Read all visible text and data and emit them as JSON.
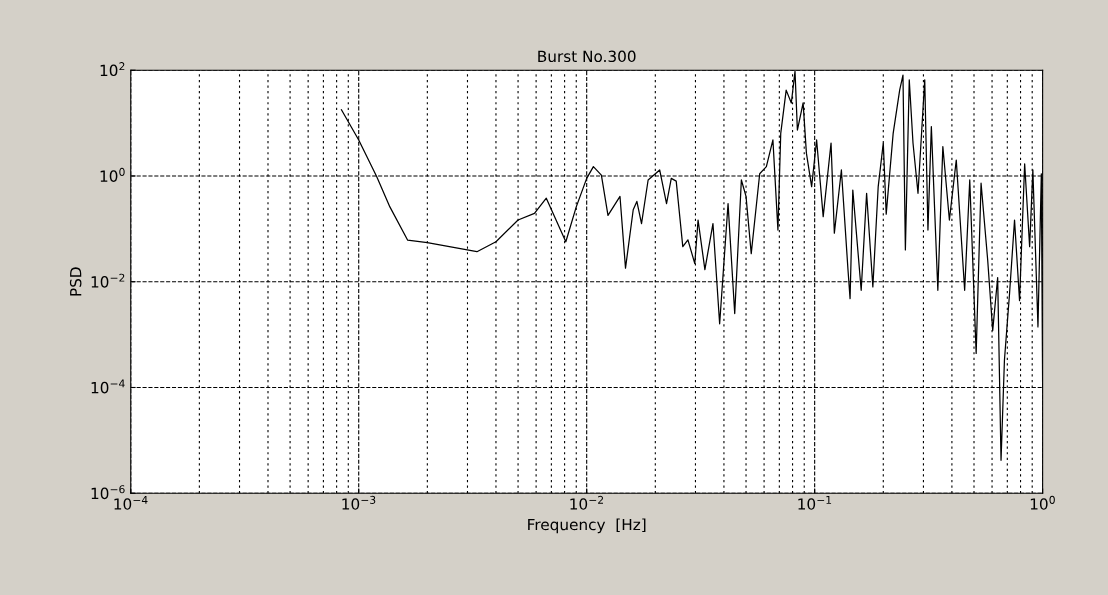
{
  "chart_data": {
    "type": "line",
    "title": "Burst No.300",
    "xlabel": "Frequency  [Hz]",
    "ylabel": "PSD",
    "log": "xy",
    "grid": true,
    "marker": "none",
    "line_style": "solid",
    "xlim": [
      0.0001,
      1
    ],
    "ylim": [
      1e-06,
      100
    ],
    "xticks": [
      {
        "value": 0.0001,
        "label": "10$^{−4}$"
      },
      {
        "value": 0.001,
        "label": "10$^{−3}$"
      },
      {
        "value": 0.01,
        "label": "10$^{−2}$"
      },
      {
        "value": 0.1,
        "label": "10$^{−1}$"
      },
      {
        "value": 1,
        "label": "10$^{0}$"
      }
    ],
    "yticks": [
      {
        "value": 1e-06,
        "label": "10$^{−6}$"
      },
      {
        "value": 0.0001,
        "label": "10$^{−4}$"
      },
      {
        "value": 0.01,
        "label": "10$^{−2}$"
      },
      {
        "value": 1,
        "label": "10$^{0}$"
      },
      {
        "value": 100,
        "label": "10$^{2}$"
      }
    ],
    "series": [
      {
        "color": "#000000",
        "x": [
          0.00084,
          0.001,
          0.0012,
          0.00137,
          0.00164,
          0.002,
          0.0033,
          0.004,
          0.005,
          0.0059,
          0.00665,
          0.0081,
          0.009,
          0.01,
          0.0107,
          0.0116,
          0.0124,
          0.014,
          0.0148,
          0.016,
          0.0166,
          0.0174,
          0.0186,
          0.0209,
          0.0224,
          0.0235,
          0.0247,
          0.0264,
          0.0278,
          0.0298,
          0.0308,
          0.033,
          0.0358,
          0.0383,
          0.0417,
          0.0446,
          0.0477,
          0.05,
          0.0527,
          0.0574,
          0.0614,
          0.0656,
          0.069,
          0.071,
          0.075,
          0.079,
          0.082,
          0.084,
          0.089,
          0.092,
          0.097,
          0.102,
          0.109,
          0.118,
          0.122,
          0.131,
          0.14,
          0.143,
          0.147,
          0.16,
          0.169,
          0.18,
          0.19,
          0.2,
          0.206,
          0.221,
          0.236,
          0.244,
          0.25,
          0.26,
          0.27,
          0.284,
          0.304,
          0.314,
          0.325,
          0.347,
          0.365,
          0.39,
          0.418,
          0.455,
          0.479,
          0.511,
          0.537,
          0.574,
          0.604,
          0.635,
          0.657,
          0.68,
          0.716,
          0.753,
          0.792,
          0.834,
          0.877,
          0.906,
          0.954,
          0.987,
          1.0
        ],
        "values": [
          17.8,
          4.8,
          0.97,
          0.26,
          0.061,
          0.055,
          0.037,
          0.057,
          0.147,
          0.196,
          0.38,
          0.057,
          0.26,
          0.9,
          1.5,
          1.04,
          0.18,
          0.41,
          0.018,
          0.23,
          0.33,
          0.126,
          0.84,
          1.3,
          0.3,
          0.9,
          0.8,
          0.046,
          0.062,
          0.022,
          0.147,
          0.017,
          0.126,
          0.0016,
          0.3,
          0.0025,
          0.84,
          0.41,
          0.034,
          1.1,
          1.5,
          4.8,
          0.095,
          6.4,
          42,
          24,
          95,
          7.4,
          24,
          2.7,
          0.63,
          4.8,
          0.17,
          4.2,
          0.083,
          1.3,
          0.017,
          0.0048,
          0.54,
          0.0069,
          0.47,
          0.008,
          0.63,
          4.2,
          0.19,
          6.4,
          42,
          81,
          0.04,
          66,
          4.2,
          0.47,
          66,
          0.095,
          8.6,
          0.0069,
          3.6,
          0.147,
          2.0,
          0.0069,
          0.84,
          0.00044,
          0.73,
          0.026,
          0.0012,
          0.012,
          4.2e-06,
          0.00033,
          0.006,
          0.147,
          0.0044,
          1.7,
          0.046,
          1.3,
          0.0014,
          1.1,
          0.0001
        ]
      }
    ]
  }
}
